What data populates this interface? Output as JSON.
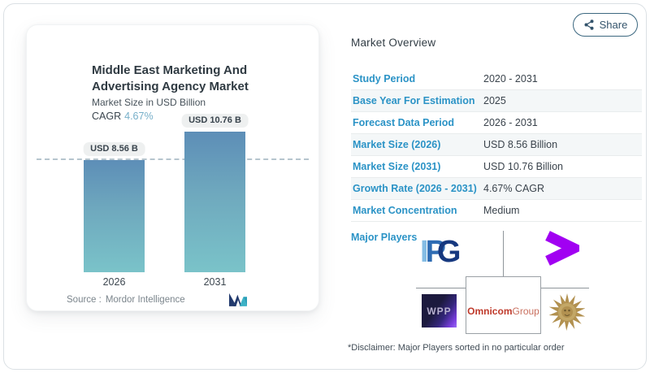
{
  "share": {
    "label": "Share"
  },
  "card": {
    "title": "Middle East Marketing And Advertising Agency Market",
    "subtitle": "Market Size in USD Billion",
    "cagr_label": "CAGR",
    "cagr_value": "4.67%",
    "source_label": "Source :",
    "source_value": "Mordor Intelligence"
  },
  "chart_data": {
    "type": "bar",
    "title": "Middle East Marketing And Advertising Agency Market",
    "subtitle": "Market Size in USD Billion",
    "unit": "USD Billion",
    "categories": [
      "2026",
      "2031"
    ],
    "values": [
      8.56,
      10.76
    ],
    "bar_labels": [
      "USD 8.56 B",
      "USD 10.76 B"
    ],
    "cagr": "4.67%",
    "ylim": [
      0,
      10.76
    ],
    "reference_line": 8.56,
    "grid": false,
    "legend": "none",
    "bar_gradient_top": "#5d8eb7",
    "bar_gradient_bottom": "#7ac3c9"
  },
  "overview": {
    "heading": "Market Overview",
    "rows": [
      {
        "label": "Study Period",
        "value": "2020 - 2031"
      },
      {
        "label": "Base Year For Estimation",
        "value": "2025"
      },
      {
        "label": "Forecast Data Period",
        "value": "2026 - 2031"
      },
      {
        "label": "Market Size (2026)",
        "value": "USD 8.56 Billion"
      },
      {
        "label": "Market Size (2031)",
        "value": "USD 10.76 Billion"
      },
      {
        "label": "Growth Rate (2026 - 2031)",
        "value": "4.67% CAGR"
      },
      {
        "label": "Market Concentration",
        "value": "Medium"
      }
    ],
    "major_players_label": "Major Players",
    "players": [
      "IPG",
      "Accenture",
      "WPP",
      "OmnicomGroup",
      "Publicis Groupe"
    ],
    "disclaimer": "*Disclaimer: Major Players sorted in no particular order"
  },
  "logos": {
    "ipg_i": "I",
    "ipg_p": "P",
    "ipg_g": "G",
    "wpp": "WPP",
    "omnicom_bold": "Omnicom",
    "omnicom_regular": "Group"
  },
  "colors": {
    "label_blue": "#2b93c6",
    "cagr_blue": "#76afc9",
    "accenture_purple": "#a100f2",
    "omnicom_red": "#bf3a2b",
    "publicis_gold": "#b29150",
    "bar_top": "#5d8eb7",
    "bar_bottom": "#7ac3c9"
  }
}
